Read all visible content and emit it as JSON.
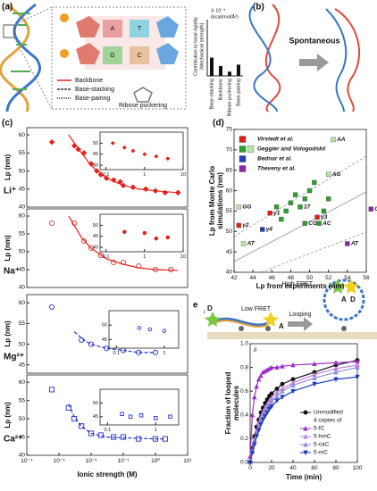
{
  "figure": {
    "panels": [
      "(a)",
      "(b)",
      "(c)",
      "(d)",
      "e"
    ],
    "a_legend": [
      "Backbone",
      "Base-stacking",
      "Base-pairing",
      "Ribose puckering"
    ],
    "a_letters": [
      "A",
      "G",
      "C",
      "T"
    ],
    "b_text": "Spontaneous",
    "e_sub": [
      "i",
      "ii"
    ],
    "e_labels": [
      "D",
      "A",
      "Low FRET",
      "Looping",
      "High FRET",
      "A",
      "D"
    ]
  },
  "chart_data": [
    {
      "type": "bar",
      "ylabel": [
        "Contribution to local rigidity",
        "(Mechanical strength)"
      ],
      "unit": [
        "X 10⁻⁴",
        "(kcal/mol/Å²)"
      ],
      "categories": [
        "Base-stacking",
        "Backbone",
        "Ribose puckering",
        "Base-pairing"
      ],
      "values": [
        1.3,
        0.7,
        0.3,
        0.8
      ],
      "ylim": [
        0,
        4
      ],
      "color": "#111111"
    },
    {
      "type": "scatter",
      "annotation": "Li⁺",
      "ylabel": "Lp (nm)",
      "xlog": true,
      "xlim": [
        0.0001,
        10
      ],
      "ylim": [
        40,
        62
      ],
      "yticks": [
        40,
        45,
        50,
        55,
        60
      ],
      "series": [
        {
          "color": "#e8201c",
          "marker": "diamond",
          "filled": true,
          "x": [
            0.0006,
            0.003,
            0.004,
            0.006,
            0.01,
            0.015,
            0.02,
            0.03,
            0.05,
            0.08,
            0.1,
            0.2,
            0.5,
            1,
            2,
            5
          ],
          "values": [
            58,
            57,
            56,
            55,
            52,
            50,
            49,
            48,
            47.5,
            47,
            46,
            45.5,
            45,
            44.5,
            44,
            44
          ]
        },
        {
          "color": "#e8201c",
          "style": "line",
          "x": [
            0.002,
            0.005,
            0.01,
            0.03,
            0.1,
            0.3,
            1,
            5
          ],
          "values": [
            60,
            55,
            51.5,
            48,
            46,
            45,
            44.5,
            44
          ]
        }
      ]
    },
    {
      "type": "scatter",
      "annotation": "Na⁺",
      "ylabel": "Lp (nm)",
      "xlog": true,
      "xlim": [
        0.0001,
        10
      ],
      "ylim": [
        40,
        62
      ],
      "yticks": [
        40,
        45,
        50,
        55,
        60
      ],
      "series": [
        {
          "color": "#c0392b",
          "marker": "circle",
          "filled": false,
          "x": [
            0.0006,
            0.003,
            0.006,
            0.01,
            0.02,
            0.05,
            0.1,
            0.3,
            1,
            3
          ],
          "values": [
            58,
            58,
            53,
            51,
            49,
            47,
            47,
            46,
            45,
            45
          ]
        },
        {
          "color": "#e8201c",
          "style": "line",
          "x": [
            0.002,
            0.005,
            0.01,
            0.03,
            0.1,
            0.3,
            1,
            5
          ],
          "values": [
            60,
            54,
            51,
            48,
            46.5,
            45.5,
            45,
            44.8
          ]
        }
      ]
    },
    {
      "type": "scatter",
      "annotation": "Mg²⁺",
      "ylabel": "Lp (nm)",
      "xlog": true,
      "xlim": [
        0.0001,
        10
      ],
      "ylim": [
        43,
        62
      ],
      "yticks": [
        45,
        50,
        55,
        60
      ],
      "series": [
        {
          "color": "#2431c8",
          "marker": "circle",
          "filled": false,
          "x": [
            0.0006,
            0.005,
            0.01,
            0.03,
            0.1,
            0.3,
            1
          ],
          "values": [
            59,
            51,
            50,
            49,
            48.5,
            48,
            48
          ]
        },
        {
          "color": "#2431c8",
          "style": "dash",
          "x": [
            0.003,
            0.006,
            0.01,
            0.03,
            0.1,
            0.3,
            1
          ],
          "values": [
            53,
            51,
            50,
            49,
            48.5,
            48,
            48
          ]
        }
      ]
    },
    {
      "type": "scatter",
      "annotation": "Ca²⁺",
      "ylabel": "Lp (nm)",
      "xlabel": "Ionic strength (M)",
      "xlog": true,
      "xlim": [
        0.0001,
        10
      ],
      "ylim": [
        40,
        62
      ],
      "yticks": [
        40,
        45,
        50,
        55,
        60
      ],
      "xticks": [
        {
          "value": 0.0001,
          "label": "10⁻⁴"
        },
        {
          "value": 0.001,
          "label": "10⁻³"
        },
        {
          "value": 0.01,
          "label": "10⁻²"
        },
        {
          "value": 0.1,
          "label": "10⁻¹"
        },
        {
          "value": 1,
          "label": "10⁰"
        },
        {
          "value": 10,
          "label": "10¹"
        }
      ],
      "series": [
        {
          "color": "#2431c8",
          "marker": "square",
          "filled": false,
          "x": [
            0.0006,
            0.002,
            0.003,
            0.005,
            0.01,
            0.02,
            0.05,
            0.1,
            0.3,
            1,
            2
          ],
          "values": [
            58,
            53,
            50,
            48,
            46,
            45.5,
            45,
            45,
            44.5,
            44.5,
            44.5
          ]
        },
        {
          "color": "#2431c8",
          "style": "dash",
          "x": [
            0.002,
            0.003,
            0.005,
            0.01,
            0.03,
            0.1,
            1,
            2
          ],
          "values": [
            54,
            50.5,
            48,
            46,
            45,
            44.8,
            44.5,
            44.5
          ]
        }
      ]
    },
    {
      "type": "scatter",
      "xlog": true,
      "xlim": [
        0.07,
        10
      ],
      "xticks": [
        0.1,
        1,
        10
      ],
      "ylim": [
        38,
        55
      ],
      "yticks": [
        40,
        45,
        50
      ],
      "series": [
        {
          "color": "#e8201c",
          "marker": "diamond",
          "filled": true,
          "x": [
            0.15,
            0.3,
            0.5,
            1,
            2,
            4
          ],
          "values": [
            50,
            48,
            46.5,
            45,
            44,
            43
          ]
        }
      ]
    },
    {
      "type": "scatter",
      "xlog": true,
      "xlim": [
        0.07,
        10
      ],
      "xticks": [
        0.1,
        1,
        10
      ],
      "ylim": [
        38,
        55
      ],
      "yticks": [
        40,
        45,
        50
      ],
      "series": [
        {
          "color": "#e8201c",
          "marker": "circle",
          "filled": true,
          "x": [
            0.3,
            1,
            2,
            4
          ],
          "values": [
            47,
            46.5,
            44,
            44.5
          ]
        }
      ]
    },
    {
      "type": "scatter",
      "xlog": true,
      "xlim": [
        0.07,
        2
      ],
      "xticks": [
        0.1,
        1
      ],
      "ylim": [
        42,
        55
      ],
      "yticks": [
        45,
        50
      ],
      "series": [
        {
          "color": "#2431c8",
          "marker": "circle",
          "filled": false,
          "x": [
            0.3,
            0.5,
            1
          ],
          "values": [
            49,
            48.5,
            48
          ]
        }
      ]
    },
    {
      "type": "scatter",
      "xlog": true,
      "xlim": [
        0.07,
        3
      ],
      "xticks": [
        0.1,
        1
      ],
      "ylim": [
        42,
        55
      ],
      "yticks": [
        45,
        50
      ],
      "series": [
        {
          "color": "#2431c8",
          "marker": "square",
          "filled": false,
          "x": [
            0.2,
            0.3,
            0.5,
            1,
            2
          ],
          "values": [
            46,
            45,
            45.5,
            44.5,
            45
          ]
        }
      ]
    },
    {
      "type": "scatter",
      "xlabel": "Lp from experiments (nm)",
      "ylabel": [
        "Lp from Monte Carlo",
        "simulations (nm)"
      ],
      "xlim": [
        42,
        56
      ],
      "xticks": [
        42,
        44,
        46,
        48,
        50,
        52,
        54,
        56
      ],
      "ylim": [
        40,
        75
      ],
      "yticks": [
        40,
        45,
        50,
        55,
        60,
        65,
        70,
        75
      ],
      "series": [
        {
          "name": "Virstedt et al.",
          "color": "#e31a1c",
          "x": [
            45.8,
            42.5,
            50.8
          ],
          "values": [
            54.5,
            51.5,
            53.5
          ],
          "labels": [
            "γ1",
            "γ2",
            "γ3"
          ]
        },
        {
          "name": "Geggier and Vologodskii",
          "color": "#2ca02c",
          "colors": [
            "#b8e6a8",
            "#b8e6a8",
            "#b8e6a8",
            "#b8e6a8",
            "#2ca02c",
            "#2ca02c",
            "#2ca02c",
            "#2ca02c",
            "#2ca02c",
            "#2ca02c",
            "#2ca02c",
            "#2ca02c",
            "#2ca02c",
            "#2ca02c",
            "#2ca02c",
            "#2ca02c",
            "#2ca02c"
          ],
          "x": [
            52.5,
            52,
            42.5,
            43,
            49,
            49.5,
            51,
            48,
            48.5,
            49.5,
            50,
            50.5,
            51.5,
            52,
            47,
            47.5,
            46.5
          ],
          "values": [
            72.5,
            64,
            56,
            47,
            56,
            52,
            52,
            57,
            59,
            58,
            60,
            62,
            55,
            58,
            53,
            55,
            56
          ],
          "labels": [
            "AA",
            "AG",
            "GG",
            "AT",
            "17",
            "CG",
            "AC",
            null,
            null,
            null,
            null,
            null,
            null,
            null,
            null,
            null,
            null
          ]
        },
        {
          "name": "Bednar et al.",
          "color": "#1f3fbf",
          "x": [
            45
          ],
          "values": [
            50.5
          ],
          "labels": [
            "γ4"
          ]
        },
        {
          "name": "Theveny et al.",
          "color": "#8e24aa",
          "x": [
            54,
            56.5
          ],
          "values": [
            47,
            55.5
          ],
          "labels": [
            "AT",
            "CG"
          ]
        }
      ]
    },
    {
      "type": "line",
      "xlabel": "Time (min)",
      "ylabel": [
        "Fraction of looped",
        "molecules"
      ],
      "legend_note": "4 copies of",
      "xlim": [
        0,
        100
      ],
      "xticks": [
        0,
        20,
        40,
        60,
        80,
        100
      ],
      "ylim": [
        0,
        1
      ],
      "yticks": [
        {
          "value": 0,
          "label": "0.0"
        },
        0.2,
        0.4,
        0.6,
        0.8,
        {
          "value": 1,
          "label": "1.0"
        }
      ],
      "x": [
        0,
        2,
        4,
        6,
        8,
        10,
        12,
        14,
        16,
        18,
        20,
        25,
        30,
        40,
        60,
        80,
        100
      ],
      "series": [
        {
          "name": "Unmodified",
          "color": "#111111",
          "marker": "circle",
          "values": [
            0,
            0.12,
            0.22,
            0.3,
            0.36,
            0.42,
            0.46,
            0.5,
            0.53,
            0.56,
            0.58,
            0.62,
            0.66,
            0.7,
            0.76,
            0.82,
            0.86
          ]
        },
        {
          "name": "5-fC",
          "color": "#9b30c8",
          "marker": "triangle",
          "values": [
            0.05,
            0.4,
            0.55,
            0.64,
            0.7,
            0.73,
            0.76,
            0.77,
            0.78,
            0.79,
            0.8,
            0.8,
            0.81,
            0.82,
            0.83,
            0.84,
            0.85
          ]
        },
        {
          "name": "5-hmC",
          "color": "#c27fe0",
          "marker": "triangle",
          "values": [
            0,
            0.1,
            0.19,
            0.27,
            0.33,
            0.38,
            0.42,
            0.46,
            0.49,
            0.52,
            0.54,
            0.59,
            0.62,
            0.67,
            0.74,
            0.79,
            0.82
          ]
        },
        {
          "name": "5-caC",
          "color": "#8f8fd8",
          "marker": "triangle",
          "values": [
            0,
            0.09,
            0.17,
            0.24,
            0.3,
            0.35,
            0.39,
            0.43,
            0.46,
            0.48,
            0.51,
            0.56,
            0.6,
            0.65,
            0.71,
            0.76,
            0.8
          ]
        },
        {
          "name": "5-mC",
          "color": "#1f3fbf",
          "marker": "down",
          "values": [
            0,
            0.08,
            0.15,
            0.22,
            0.27,
            0.32,
            0.36,
            0.39,
            0.42,
            0.45,
            0.47,
            0.52,
            0.55,
            0.6,
            0.66,
            0.7,
            0.72
          ]
        }
      ]
    }
  ]
}
